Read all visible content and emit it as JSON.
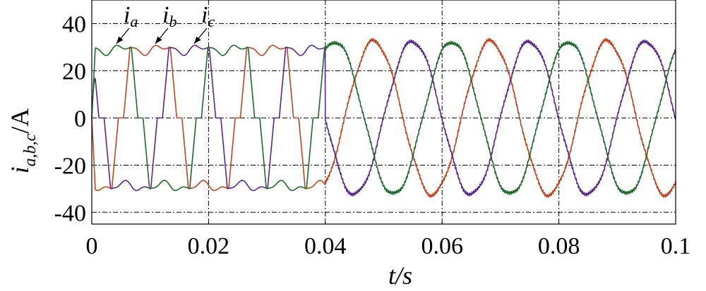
{
  "chart_data": {
    "type": "line",
    "title": "",
    "xlabel": "t/s",
    "ylabel": "i_a,b,c/A",
    "xlim": [
      0,
      0.1
    ],
    "ylim": [
      -45,
      50
    ],
    "xticks": [
      0,
      0.02,
      0.04,
      0.06,
      0.08,
      0.1
    ],
    "xtick_labels": [
      "0",
      "0.02",
      "0.04",
      "0.06",
      "0.08",
      "0.1"
    ],
    "yticks": [
      40,
      20,
      0,
      -20,
      -40
    ],
    "ytick_labels": [
      "40",
      "20",
      "0",
      "-20",
      "-40"
    ],
    "grid": true,
    "frequency_hz": 50,
    "transition_time_s": 0.04,
    "series": [
      {
        "name": "i_a",
        "color": "#c0441e",
        "phase_deg": 0,
        "amplitude_before_A": 30,
        "amplitude_after_A": 32.5,
        "waveform_before": "quasi-square",
        "waveform_after": "sinusoidal"
      },
      {
        "name": "i_b",
        "color": "#5a2590",
        "phase_deg": -120,
        "amplitude_before_A": 30,
        "amplitude_after_A": 32.5,
        "waveform_before": "quasi-square",
        "waveform_after": "sinusoidal"
      },
      {
        "name": "i_c",
        "color": "#1e6a2c",
        "phase_deg": 120,
        "amplitude_before_A": 30,
        "amplitude_after_A": 32.5,
        "waveform_before": "quasi-square",
        "waveform_after": "sinusoidal"
      }
    ],
    "annotations": [
      {
        "base": "i",
        "sub": "a",
        "target_series": "i_a"
      },
      {
        "base": "i",
        "sub": "b",
        "target_series": "i_b"
      },
      {
        "base": "i",
        "sub": "c",
        "target_series": "i_c"
      }
    ],
    "axis_labels": {
      "y_base": "i",
      "y_sub": "a,b,c",
      "y_unit": "/A",
      "x_base": "t",
      "x_unit": "/s"
    }
  }
}
